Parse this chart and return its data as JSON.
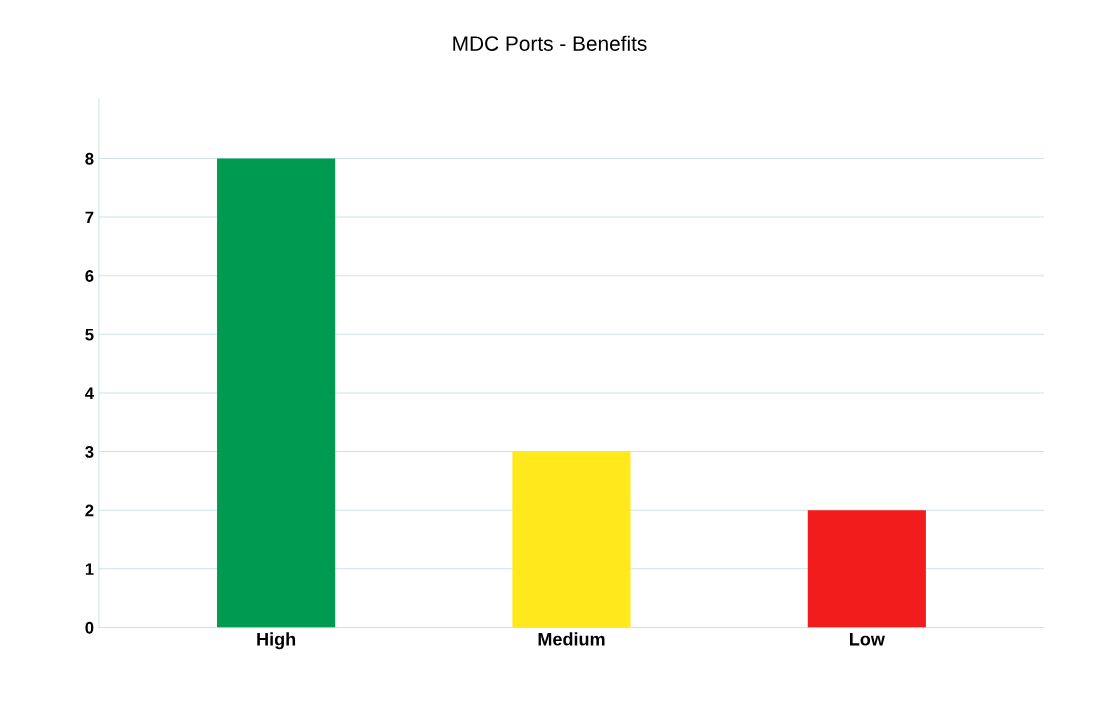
{
  "chart_data": {
    "type": "bar",
    "title": "MDC Ports - Benefits",
    "categories": [
      "High",
      "Medium",
      "Low"
    ],
    "values": [
      8,
      3,
      2
    ],
    "colors": [
      "#009a50",
      "#ffe81c",
      "#f21c1c"
    ],
    "ylim": [
      0,
      9
    ],
    "yticks": [
      0,
      1,
      2,
      3,
      4,
      5,
      6,
      7,
      8
    ],
    "grid": "y",
    "legend": false
  }
}
